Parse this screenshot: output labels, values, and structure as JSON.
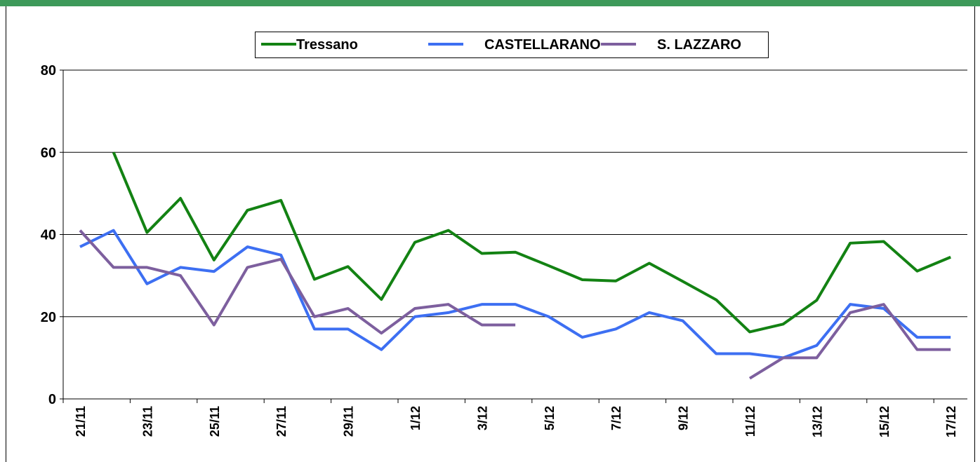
{
  "chart_data": {
    "type": "line",
    "categories": [
      "21/11",
      null,
      "23/11",
      null,
      "25/11",
      null,
      "27/11",
      null,
      "29/11",
      null,
      "1/12",
      null,
      "3/12",
      null,
      "5/12",
      null,
      "7/12",
      null,
      "9/12",
      null,
      "11/12",
      null,
      "13/12",
      null,
      "15/12",
      null,
      "17/12"
    ],
    "series": [
      {
        "name": "Tressano",
        "color": "#138213",
        "values": [
          null,
          60,
          40.5,
          48.8,
          33.8,
          45.9,
          48.3,
          29.1,
          32.2,
          24.2,
          38.1,
          41,
          35.4,
          35.7,
          32.4,
          29,
          28.7,
          33,
          28.6,
          24.1,
          16.3,
          18.2,
          24,
          37.9,
          38.3,
          31.1,
          34.5
        ]
      },
      {
        "name": "CASTELLARANO",
        "color": "#3d6ff2",
        "values": [
          37,
          41,
          28,
          32,
          31,
          37,
          35,
          17,
          17,
          12,
          20,
          21,
          23,
          23,
          20,
          15,
          17,
          21,
          19,
          11,
          11,
          10,
          13,
          23,
          22,
          15,
          15
        ]
      },
      {
        "name": "S. LAZZARO",
        "color": "#7d5f9e",
        "values": [
          41,
          32,
          32,
          30,
          18,
          32,
          34,
          20,
          22,
          16,
          22,
          23,
          18,
          18,
          null,
          null,
          null,
          null,
          null,
          null,
          5,
          10,
          10,
          21,
          23,
          12,
          12
        ]
      }
    ],
    "ylim": [
      0,
      80
    ],
    "yticks": [
      0,
      20,
      40,
      60,
      80
    ],
    "grid": true,
    "legend": "top"
  }
}
